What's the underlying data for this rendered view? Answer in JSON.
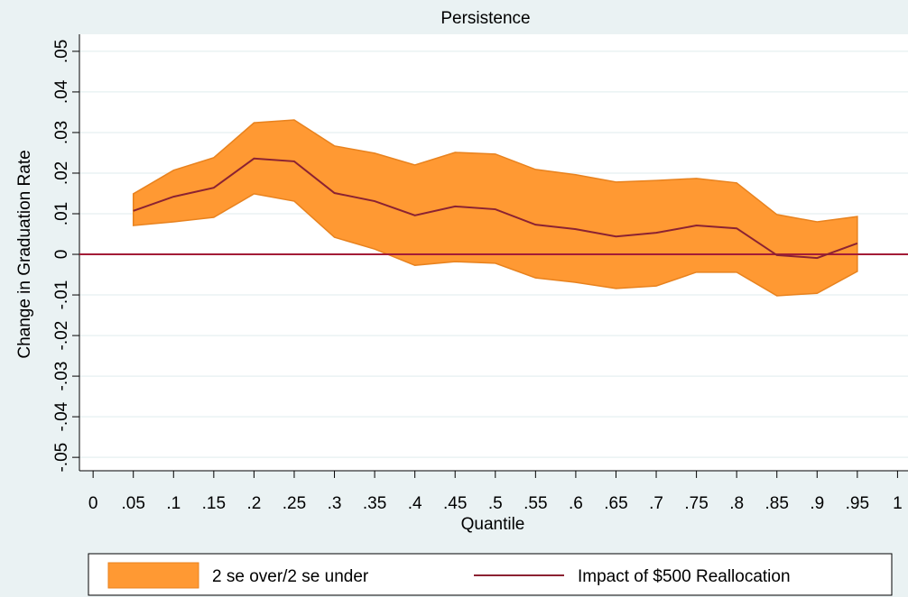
{
  "chart_data": {
    "type": "band-line",
    "title": "Persistence",
    "x_label": "Quantile",
    "y_label": "Change in Graduation Rate",
    "x": [
      0.05,
      0.1,
      0.15,
      0.2,
      0.25,
      0.3,
      0.35,
      0.4,
      0.45,
      0.5,
      0.55,
      0.6,
      0.65,
      0.7,
      0.75,
      0.8,
      0.85,
      0.9,
      0.95
    ],
    "band": {
      "name": "2 se over/2 se under",
      "color": "#ff9933",
      "upper": [
        0.0149,
        0.0207,
        0.0238,
        0.0324,
        0.0331,
        0.0267,
        0.0249,
        0.022,
        0.0251,
        0.0247,
        0.0209,
        0.0196,
        0.0178,
        0.0182,
        0.0187,
        0.0176,
        0.0098,
        0.008,
        0.0093
      ],
      "lower": [
        0.0071,
        0.008,
        0.0091,
        0.0149,
        0.0131,
        0.0042,
        0.0013,
        -0.0027,
        -0.0018,
        -0.0022,
        -0.0058,
        -0.0069,
        -0.0084,
        -0.0078,
        -0.0044,
        -0.0044,
        -0.0102,
        -0.0096,
        -0.0042
      ]
    },
    "line": {
      "name": "Impact of $500 Reallocation",
      "color": "#8b2232",
      "values": [
        0.0107,
        0.0142,
        0.0164,
        0.0236,
        0.0229,
        0.0151,
        0.0131,
        0.0096,
        0.0118,
        0.0111,
        0.0073,
        0.0062,
        0.0044,
        0.0053,
        0.0071,
        0.0064,
        -0.0002,
        -0.0009,
        0.0027
      ]
    },
    "reference_line": 0,
    "reference_color": "#a31c37",
    "xlim": [
      -0.017,
      1.013
    ],
    "ylim": [
      -0.0533,
      0.0542
    ],
    "grid": true,
    "xticks": [
      0,
      {
        "value": 0.05,
        "label": ".05"
      },
      {
        "value": 0.1,
        "label": ".1"
      },
      {
        "value": 0.15,
        "label": ".15"
      },
      {
        "value": 0.2,
        "label": ".2"
      },
      {
        "value": 0.25,
        "label": ".25"
      },
      {
        "value": 0.3,
        "label": ".3"
      },
      {
        "value": 0.35,
        "label": ".35"
      },
      {
        "value": 0.4,
        "label": ".4"
      },
      {
        "value": 0.45,
        "label": ".45"
      },
      {
        "value": 0.5,
        "label": ".5"
      },
      {
        "value": 0.55,
        "label": ".55"
      },
      {
        "value": 0.6,
        "label": ".6"
      },
      {
        "value": 0.65,
        "label": ".65"
      },
      {
        "value": 0.7,
        "label": ".7"
      },
      {
        "value": 0.75,
        "label": ".75"
      },
      {
        "value": 0.8,
        "label": ".8"
      },
      {
        "value": 0.85,
        "label": ".85"
      },
      {
        "value": 0.9,
        "label": ".9"
      },
      {
        "value": 0.95,
        "label": ".95"
      },
      1
    ],
    "yticks": [
      {
        "value": -0.05,
        "label": "-.05"
      },
      {
        "value": -0.04,
        "label": "-.04"
      },
      {
        "value": -0.03,
        "label": "-.03"
      },
      {
        "value": -0.02,
        "label": "-.02"
      },
      {
        "value": -0.01,
        "label": "-.01"
      },
      0,
      {
        "value": 0.01,
        "label": ".01"
      },
      {
        "value": 0.02,
        "label": ".02"
      },
      {
        "value": 0.03,
        "label": ".03"
      },
      {
        "value": 0.04,
        "label": ".04"
      },
      {
        "value": 0.05,
        "label": ".05"
      }
    ]
  }
}
